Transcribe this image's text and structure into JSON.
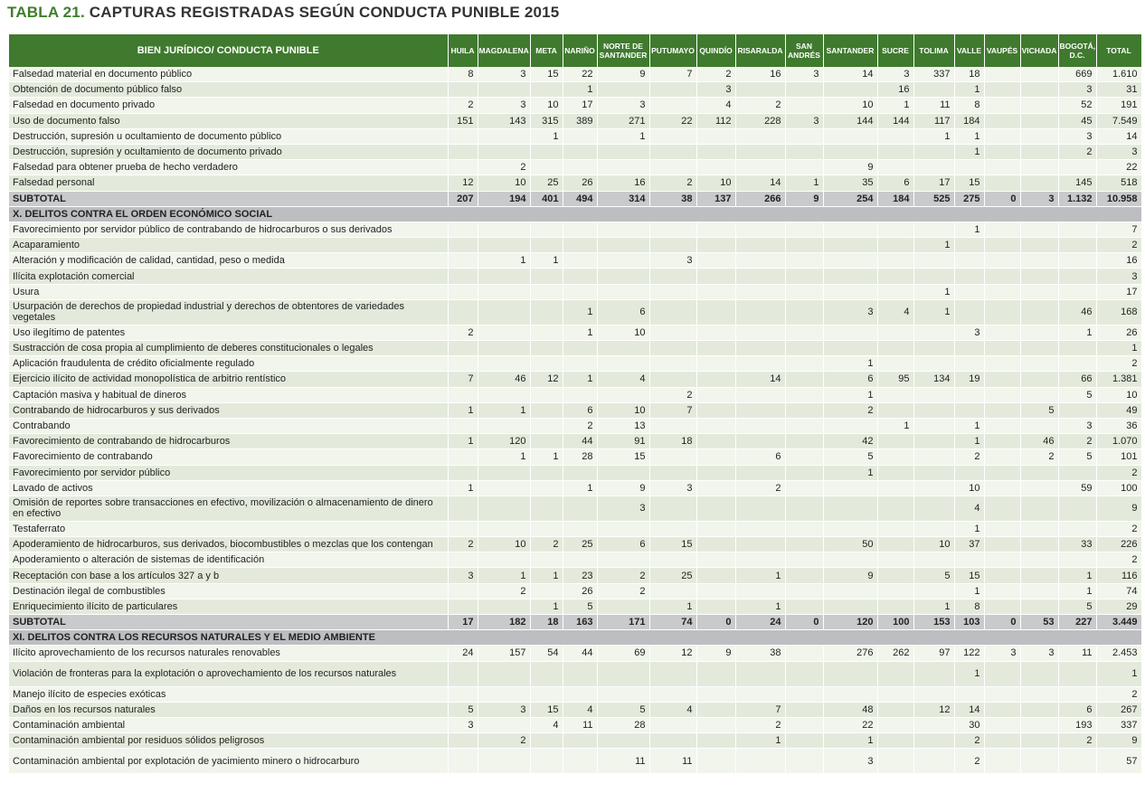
{
  "title": {
    "prefix": "TABLA 21.",
    "text": " CAPTURAS REGISTRADAS SEGÚN CONDUCTA PUNIBLE 2015"
  },
  "colors": {
    "header": "#3f7a2e",
    "title_accent": "#3c7f2c",
    "subtotal": "#c9cacc",
    "section": "#bdbec1"
  },
  "columns": [
    "BIEN JURÍDICO/ CONDUCTA PUNIBLE",
    "HUILA",
    "MAGDALENA",
    "META",
    "NARIÑO",
    "NORTE DE SANTANDER",
    "PUTUMAYO",
    "QUINDÍO",
    "RISARALDA",
    "SAN ANDRÉS",
    "SANTANDER",
    "SUCRE",
    "TOLIMA",
    "VALLE",
    "VAUPÉS",
    "VICHADA",
    "BOGOTÁ, D.C.",
    "TOTAL"
  ],
  "rows": [
    {
      "type": "data",
      "label": "Falsedad material en documento público",
      "values": [
        "8",
        "3",
        "15",
        "22",
        "9",
        "7",
        "2",
        "16",
        "3",
        "14",
        "3",
        "337",
        "18",
        "",
        "",
        "669",
        "1.610"
      ]
    },
    {
      "type": "data",
      "label": "Obtención de documento público falso",
      "values": [
        "",
        "",
        "",
        "1",
        "",
        "",
        "3",
        "",
        "",
        "",
        "16",
        "",
        "1",
        "",
        "",
        "3",
        "31"
      ]
    },
    {
      "type": "data",
      "label": "Falsedad en documento privado",
      "values": [
        "2",
        "3",
        "10",
        "17",
        "3",
        "",
        "4",
        "2",
        "",
        "10",
        "1",
        "11",
        "8",
        "",
        "",
        "52",
        "191"
      ]
    },
    {
      "type": "data",
      "label": "Uso de documento falso",
      "values": [
        "151",
        "143",
        "315",
        "389",
        "271",
        "22",
        "112",
        "228",
        "3",
        "144",
        "144",
        "117",
        "184",
        "",
        "",
        "45",
        "7.549"
      ]
    },
    {
      "type": "data",
      "label": "Destrucción, supresión u ocultamiento de documento público",
      "values": [
        "",
        "",
        "1",
        "",
        "1",
        "",
        "",
        "",
        "",
        "",
        "",
        "1",
        "1",
        "",
        "",
        "3",
        "14"
      ]
    },
    {
      "type": "data",
      "label": "Destrucción, supresión y ocultamiento de documento privado",
      "values": [
        "",
        "",
        "",
        "",
        "",
        "",
        "",
        "",
        "",
        "",
        "",
        "",
        "1",
        "",
        "",
        "2",
        "3"
      ]
    },
    {
      "type": "data",
      "label": "Falsedad para obtener prueba de hecho verdadero",
      "values": [
        "",
        "2",
        "",
        "",
        "",
        "",
        "",
        "",
        "",
        "9",
        "",
        "",
        "",
        "",
        "",
        "",
        "22"
      ]
    },
    {
      "type": "data",
      "label": "Falsedad personal",
      "values": [
        "12",
        "10",
        "25",
        "26",
        "16",
        "2",
        "10",
        "14",
        "1",
        "35",
        "6",
        "17",
        "15",
        "",
        "",
        "145",
        "518"
      ]
    },
    {
      "type": "sub",
      "label": "SUBTOTAL",
      "values": [
        "207",
        "194",
        "401",
        "494",
        "314",
        "38",
        "137",
        "266",
        "9",
        "254",
        "184",
        "525",
        "275",
        "0",
        "3",
        "1.132",
        "10.958"
      ]
    },
    {
      "type": "sec",
      "label": "X. DELITOS CONTRA EL ORDEN ECONÓMICO SOCIAL"
    },
    {
      "type": "data",
      "label": "Favorecimiento por servidor público de contrabando de hidrocarburos o sus derivados",
      "values": [
        "",
        "",
        "",
        "",
        "",
        "",
        "",
        "",
        "",
        "",
        "",
        "",
        "1",
        "",
        "",
        "",
        "7"
      ]
    },
    {
      "type": "data",
      "label": "Acaparamiento",
      "values": [
        "",
        "",
        "",
        "",
        "",
        "",
        "",
        "",
        "",
        "",
        "",
        "1",
        "",
        "",
        "",
        "",
        "2"
      ]
    },
    {
      "type": "data",
      "label": "Alteración y modificación de calidad, cantidad, peso o medida",
      "values": [
        "",
        "1",
        "1",
        "",
        "",
        "3",
        "",
        "",
        "",
        "",
        "",
        "",
        "",
        "",
        "",
        "",
        "16"
      ]
    },
    {
      "type": "data",
      "label": "Ilícita explotación comercial",
      "values": [
        "",
        "",
        "",
        "",
        "",
        "",
        "",
        "",
        "",
        "",
        "",
        "",
        "",
        "",
        "",
        "",
        "3"
      ]
    },
    {
      "type": "data",
      "label": "Usura",
      "values": [
        "",
        "",
        "",
        "",
        "",
        "",
        "",
        "",
        "",
        "",
        "",
        "1",
        "",
        "",
        "",
        "",
        "17"
      ]
    },
    {
      "type": "data",
      "dbl": true,
      "label": "Usurpación de derechos de propiedad industrial y derechos de obtentores de variedades vegetales",
      "values": [
        "",
        "",
        "",
        "1",
        "6",
        "",
        "",
        "",
        "",
        "3",
        "4",
        "1",
        "",
        "",
        "",
        "46",
        "168"
      ]
    },
    {
      "type": "data",
      "label": "Uso ilegítimo de patentes",
      "values": [
        "2",
        "",
        "",
        "1",
        "10",
        "",
        "",
        "",
        "",
        "",
        "",
        "",
        "3",
        "",
        "",
        "1",
        "26"
      ]
    },
    {
      "type": "data",
      "label": "Sustracción de cosa propia al cumplimiento de deberes constitucionales o legales",
      "values": [
        "",
        "",
        "",
        "",
        "",
        "",
        "",
        "",
        "",
        "",
        "",
        "",
        "",
        "",
        "",
        "",
        "1"
      ]
    },
    {
      "type": "data",
      "label": "Aplicación fraudulenta de crédito oficialmente regulado",
      "values": [
        "",
        "",
        "",
        "",
        "",
        "",
        "",
        "",
        "",
        "1",
        "",
        "",
        "",
        "",
        "",
        "",
        "2"
      ]
    },
    {
      "type": "data",
      "label": "Ejercicio ilícito de actividad monopolística de arbitrio rentístico",
      "values": [
        "7",
        "46",
        "12",
        "1",
        "4",
        "",
        "",
        "14",
        "",
        "6",
        "95",
        "134",
        "19",
        "",
        "",
        "66",
        "1.381"
      ]
    },
    {
      "type": "data",
      "label": "Captación masiva y habitual de dineros",
      "values": [
        "",
        "",
        "",
        "",
        "",
        "2",
        "",
        "",
        "",
        "1",
        "",
        "",
        "",
        "",
        "",
        "5",
        "10"
      ]
    },
    {
      "type": "data",
      "label": "Contrabando de hidrocarburos y sus derivados",
      "values": [
        "1",
        "1",
        "",
        "6",
        "10",
        "7",
        "",
        "",
        "",
        "2",
        "",
        "",
        "",
        "",
        "5",
        "",
        "49"
      ]
    },
    {
      "type": "data",
      "label": "Contrabando",
      "values": [
        "",
        "",
        "",
        "2",
        "13",
        "",
        "",
        "",
        "",
        "",
        "1",
        "",
        "1",
        "",
        "",
        "3",
        "36"
      ]
    },
    {
      "type": "data",
      "label": "Favorecimiento de contrabando de hidrocarburos",
      "values": [
        "1",
        "120",
        "",
        "44",
        "91",
        "18",
        "",
        "",
        "",
        "42",
        "",
        "",
        "1",
        "",
        "46",
        "2",
        "1.070"
      ]
    },
    {
      "type": "data",
      "label": "Favorecimiento de contrabando",
      "values": [
        "",
        "1",
        "1",
        "28",
        "15",
        "",
        "",
        "6",
        "",
        "5",
        "",
        "",
        "2",
        "",
        "2",
        "5",
        "101"
      ]
    },
    {
      "type": "data",
      "label": "Favorecimiento por servidor público",
      "values": [
        "",
        "",
        "",
        "",
        "",
        "",
        "",
        "",
        "",
        "1",
        "",
        "",
        "",
        "",
        "",
        "",
        "2"
      ]
    },
    {
      "type": "data",
      "label": "Lavado de activos",
      "values": [
        "1",
        "",
        "",
        "1",
        "9",
        "3",
        "",
        "2",
        "",
        "",
        "",
        "",
        "10",
        "",
        "",
        "59",
        "100"
      ]
    },
    {
      "type": "data",
      "dbl": true,
      "label": "Omisión de reportes sobre transacciones en efectivo, movilización o almacenamiento de dinero en efectivo",
      "values": [
        "",
        "",
        "",
        "",
        "3",
        "",
        "",
        "",
        "",
        "",
        "",
        "",
        "4",
        "",
        "",
        "",
        "9"
      ]
    },
    {
      "type": "data",
      "label": "Testaferrato",
      "values": [
        "",
        "",
        "",
        "",
        "",
        "",
        "",
        "",
        "",
        "",
        "",
        "",
        "1",
        "",
        "",
        "",
        "2"
      ]
    },
    {
      "type": "data",
      "label": "Apoderamiento de hidrocarburos, sus derivados, biocombustibles o mezclas que los contengan",
      "values": [
        "2",
        "10",
        "2",
        "25",
        "6",
        "15",
        "",
        "",
        "",
        "50",
        "",
        "10",
        "37",
        "",
        "",
        "33",
        "226"
      ]
    },
    {
      "type": "data",
      "label": "Apoderamiento o alteración de sistemas de identificación",
      "values": [
        "",
        "",
        "",
        "",
        "",
        "",
        "",
        "",
        "",
        "",
        "",
        "",
        "",
        "",
        "",
        "",
        "2"
      ]
    },
    {
      "type": "data",
      "label": "Receptación con base a los artículos 327 a y b",
      "values": [
        "3",
        "1",
        "1",
        "23",
        "2",
        "25",
        "",
        "1",
        "",
        "9",
        "",
        "5",
        "15",
        "",
        "",
        "1",
        "116"
      ]
    },
    {
      "type": "data",
      "label": "Destinación ilegal de combustibles",
      "values": [
        "",
        "2",
        "",
        "26",
        "2",
        "",
        "",
        "",
        "",
        "",
        "",
        "",
        "1",
        "",
        "",
        "1",
        "74"
      ]
    },
    {
      "type": "data",
      "label": "Enriquecimiento ilícito de particulares",
      "values": [
        "",
        "",
        "1",
        "5",
        "",
        "1",
        "",
        "1",
        "",
        "",
        "",
        "1",
        "8",
        "",
        "",
        "5",
        "29"
      ]
    },
    {
      "type": "sub",
      "label": "SUBTOTAL",
      "values": [
        "17",
        "182",
        "18",
        "163",
        "171",
        "74",
        "0",
        "24",
        "0",
        "120",
        "100",
        "153",
        "103",
        "0",
        "53",
        "227",
        "3.449"
      ]
    },
    {
      "type": "sec",
      "label": "XI. DELITOS CONTRA LOS RECURSOS NATURALES Y EL MEDIO AMBIENTE"
    },
    {
      "type": "data",
      "label": "Ilícito aprovechamiento de los recursos naturales renovables",
      "values": [
        "24",
        "157",
        "54",
        "44",
        "69",
        "12",
        "9",
        "38",
        "",
        "276",
        "262",
        "97",
        "122",
        "3",
        "3",
        "11",
        "2.453"
      ]
    },
    {
      "type": "data",
      "dbl": true,
      "label": "Violación de fronteras para la explotación o aprovechamiento de los recursos naturales",
      "values": [
        "",
        "",
        "",
        "",
        "",
        "",
        "",
        "",
        "",
        "",
        "",
        "",
        "1",
        "",
        "",
        "",
        "1"
      ]
    },
    {
      "type": "data",
      "label": "Manejo ilícito de especies exóticas",
      "values": [
        "",
        "",
        "",
        "",
        "",
        "",
        "",
        "",
        "",
        "",
        "",
        "",
        "",
        "",
        "",
        "",
        "2"
      ]
    },
    {
      "type": "data",
      "label": "Daños en los recursos naturales",
      "values": [
        "5",
        "3",
        "15",
        "4",
        "5",
        "4",
        "",
        "7",
        "",
        "48",
        "",
        "12",
        "14",
        "",
        "",
        "6",
        "267"
      ]
    },
    {
      "type": "data",
      "label": "Contaminación ambiental",
      "values": [
        "3",
        "",
        "4",
        "11",
        "28",
        "",
        "",
        "2",
        "",
        "22",
        "",
        "",
        "30",
        "",
        "",
        "193",
        "337"
      ]
    },
    {
      "type": "data",
      "label": "Contaminación ambiental por residuos sólidos peligrosos",
      "values": [
        "",
        "2",
        "",
        "",
        "",
        "",
        "",
        "1",
        "",
        "1",
        "",
        "",
        "2",
        "",
        "",
        "2",
        "9"
      ]
    },
    {
      "type": "data",
      "dbl": true,
      "label": "Contaminación ambiental por explotación de yacimiento minero o hidrocarburo",
      "values": [
        "",
        "",
        "",
        "",
        "11",
        "11",
        "",
        "",
        "",
        "3",
        "",
        "",
        "2",
        "",
        "",
        "",
        "57"
      ]
    }
  ]
}
